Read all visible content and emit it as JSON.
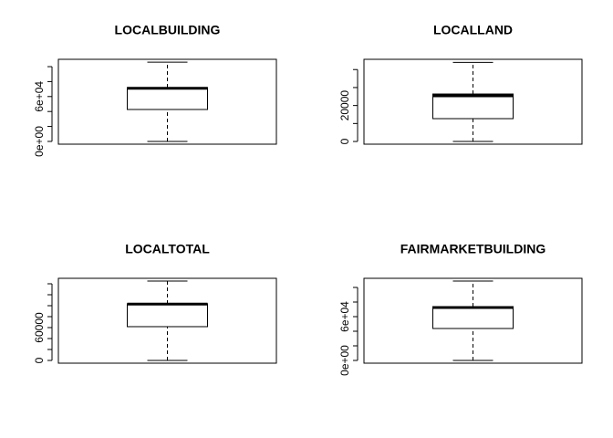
{
  "chart_data": [
    {
      "type": "box",
      "title": "LOCALBUILDING",
      "stats": [
        0,
        42700,
        71000,
        72000,
        106000
      ],
      "ylim": [
        -3700,
        109800
      ],
      "yticks": [
        {
          "value": 0,
          "label": "0e+00"
        },
        {
          "value": 20000,
          "label": null
        },
        {
          "value": 40000,
          "label": null
        },
        {
          "value": 60000,
          "label": "6e+04"
        },
        {
          "value": 80000,
          "label": null
        },
        {
          "value": 100000,
          "label": null
        }
      ]
    },
    {
      "type": "box",
      "title": "LOCALLAND",
      "stats": [
        0,
        12700,
        25400,
        26400,
        44000
      ],
      "ylim": [
        -1500,
        45700
      ],
      "yticks": [
        0,
        {
          "value": 10000,
          "label": null
        },
        20000,
        {
          "value": 30000,
          "label": null
        },
        {
          "value": 40000,
          "label": null
        }
      ]
    },
    {
      "type": "box",
      "title": "LOCALTOTAL",
      "stats": [
        0,
        61700,
        103000,
        103300,
        145000
      ],
      "ylim": [
        -5000,
        150000
      ],
      "yticks": [
        0,
        {
          "value": 20000,
          "label": null
        },
        {
          "value": 40000,
          "label": null
        },
        60000,
        {
          "value": 80000,
          "label": null
        },
        {
          "value": 100000,
          "label": null
        },
        {
          "value": 120000,
          "label": null
        },
        {
          "value": 140000,
          "label": null
        }
      ]
    },
    {
      "type": "box",
      "title": "FAIRMARKETBUILDING",
      "stats": [
        0,
        43750,
        72500,
        73750,
        108750
      ],
      "ylim": [
        -3750,
        112500
      ],
      "yticks": [
        {
          "value": 0,
          "label": "0e+00"
        },
        {
          "value": 20000,
          "label": null
        },
        {
          "value": 40000,
          "label": null
        },
        {
          "value": 60000,
          "label": "6e+04"
        },
        {
          "value": 80000,
          "label": null
        },
        {
          "value": 100000,
          "label": null
        }
      ]
    }
  ]
}
